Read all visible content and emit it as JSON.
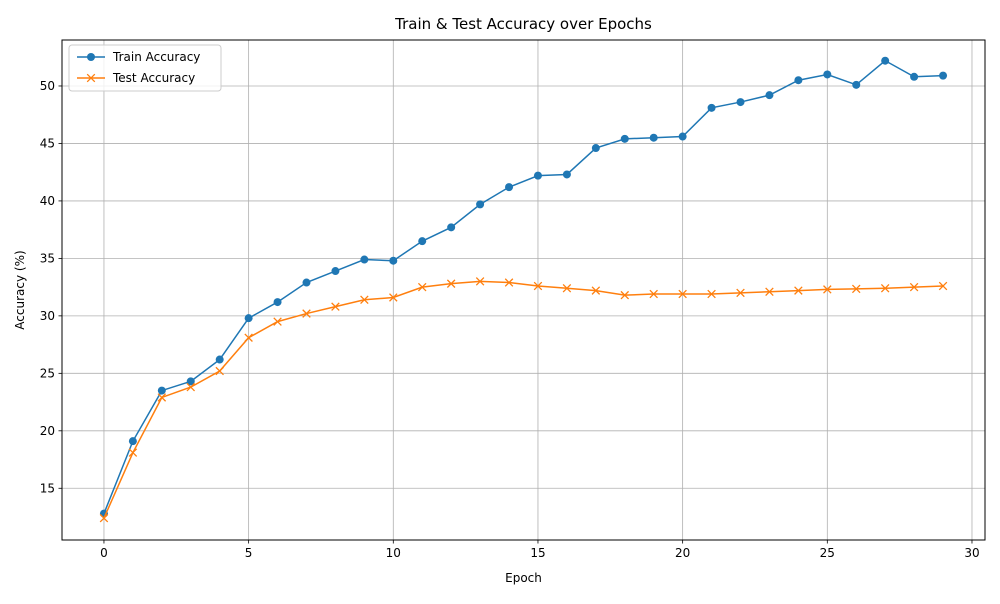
{
  "chart_data": {
    "type": "line",
    "title": "Train & Test Accuracy over Epochs",
    "xlabel": "Epoch",
    "ylabel": "Accuracy (%)",
    "xlim": [
      -1.45,
      30.45
    ],
    "ylim": [
      10.5,
      54.0
    ],
    "xticks": [
      0,
      5,
      10,
      15,
      20,
      25,
      30
    ],
    "yticks": [
      15,
      20,
      25,
      30,
      35,
      40,
      45,
      50
    ],
    "grid": true,
    "legend_position": "top-left",
    "x": [
      0,
      1,
      2,
      3,
      4,
      5,
      6,
      7,
      8,
      9,
      10,
      11,
      12,
      13,
      14,
      15,
      16,
      17,
      18,
      19,
      20,
      21,
      22,
      23,
      24,
      25,
      26,
      27,
      28,
      29
    ],
    "series": [
      {
        "name": "Train Accuracy",
        "color": "#1f77b4",
        "marker": "circle",
        "values": [
          12.8,
          19.1,
          23.5,
          24.3,
          26.2,
          29.8,
          31.2,
          32.9,
          33.9,
          34.9,
          34.8,
          36.5,
          37.7,
          39.7,
          41.2,
          42.2,
          42.3,
          44.6,
          45.4,
          45.5,
          45.6,
          48.1,
          48.6,
          49.2,
          50.5,
          51.0,
          50.1,
          52.2,
          50.8,
          50.9
        ]
      },
      {
        "name": "Test Accuracy",
        "color": "#ff7f0e",
        "marker": "x",
        "values": [
          12.4,
          18.1,
          22.9,
          23.8,
          25.2,
          28.1,
          29.5,
          30.2,
          30.8,
          31.4,
          31.6,
          32.5,
          32.8,
          33.0,
          32.9,
          32.6,
          32.4,
          32.2,
          31.8,
          31.9,
          31.9,
          31.9,
          32.0,
          32.1,
          32.2,
          32.3,
          32.35,
          32.4,
          32.5,
          32.6
        ]
      }
    ]
  }
}
